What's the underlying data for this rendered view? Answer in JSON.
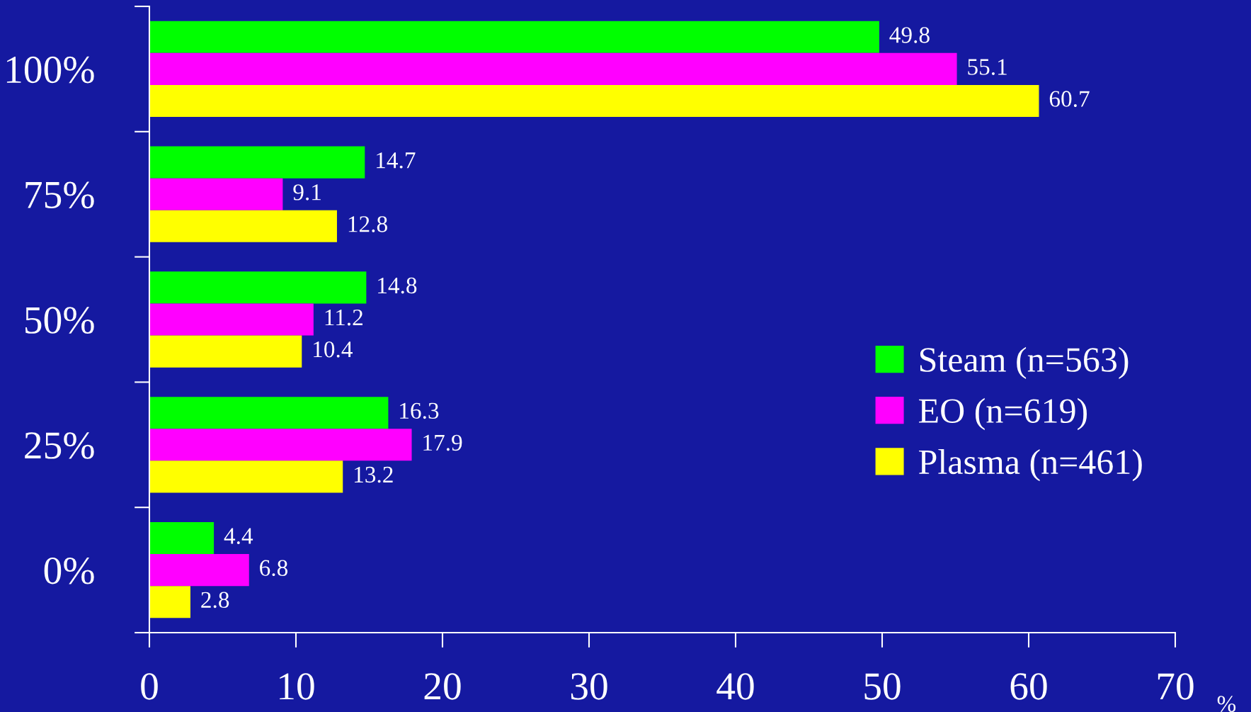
{
  "chart_data": {
    "type": "bar",
    "orientation": "horizontal",
    "xlabel": "%",
    "categories": [
      "100%",
      "75%",
      "50%",
      "25%",
      "0%"
    ],
    "series": [
      {
        "name": "Steam (n=563)",
        "color": "#00ff00",
        "values": [
          49.8,
          14.7,
          14.8,
          16.3,
          4.4
        ]
      },
      {
        "name": "EO (n=619)",
        "color": "#ff00ff",
        "values": [
          55.1,
          9.1,
          11.2,
          17.9,
          6.8
        ]
      },
      {
        "name": "Plasma (n=461)",
        "color": "#ffff00",
        "values": [
          60.7,
          12.8,
          10.4,
          13.2,
          2.8
        ]
      }
    ],
    "xlim": [
      0,
      70
    ],
    "xticks": [
      0,
      10,
      20,
      30,
      40,
      50,
      60,
      70
    ],
    "data_labels": true,
    "legend": "right",
    "grid": false
  }
}
